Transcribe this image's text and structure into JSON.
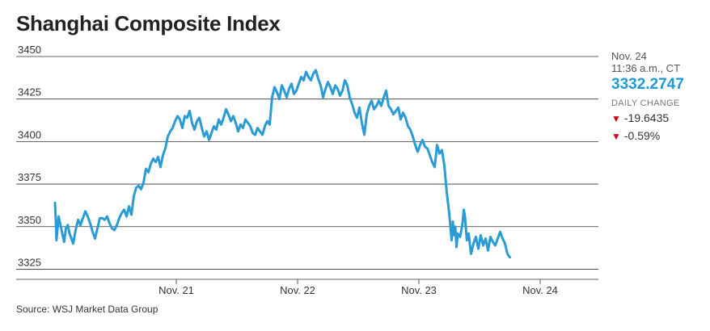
{
  "header": {
    "title": "Shanghai Composite Index"
  },
  "quote": {
    "date": "Nov. 24",
    "time": "11:36 a.m., CT",
    "price": "3332.2747",
    "daily_change_label": "DAILY CHANGE",
    "change_points": "-19.6435",
    "change_percent": "-0.59%",
    "down_color": "#d0021b",
    "price_color": "#1f9ad6"
  },
  "footer": {
    "source": "Source: WSJ Market Data Group"
  },
  "chart_data": {
    "type": "line",
    "title": "Shanghai Composite Index",
    "xlabel": "",
    "ylabel": "",
    "ylim": [
      3320,
      3450
    ],
    "yticks": [
      3325,
      3350,
      3375,
      3400,
      3425,
      3450
    ],
    "xlim": [
      0,
      4.5
    ],
    "xticks": [
      {
        "x": 1,
        "label": "Nov. 21"
      },
      {
        "x": 2,
        "label": "Nov. 22"
      },
      {
        "x": 3,
        "label": "Nov. 23"
      },
      {
        "x": 4,
        "label": "Nov. 24"
      }
    ],
    "grid": true,
    "line_color": "#2a9bd5",
    "series": [
      {
        "values": [
          [
            0.0,
            3364
          ],
          [
            0.006,
            3355
          ],
          [
            0.012,
            3342
          ],
          [
            0.02,
            3348
          ],
          [
            0.03,
            3356
          ],
          [
            0.045,
            3351
          ],
          [
            0.06,
            3346
          ],
          [
            0.075,
            3341
          ],
          [
            0.09,
            3349
          ],
          [
            0.105,
            3351
          ],
          [
            0.12,
            3346
          ],
          [
            0.135,
            3343
          ],
          [
            0.15,
            3340
          ],
          [
            0.17,
            3348
          ],
          [
            0.19,
            3354
          ],
          [
            0.21,
            3351
          ],
          [
            0.23,
            3355
          ],
          [
            0.25,
            3359
          ],
          [
            0.27,
            3356
          ],
          [
            0.29,
            3352
          ],
          [
            0.31,
            3347
          ],
          [
            0.33,
            3343
          ],
          [
            0.35,
            3349
          ],
          [
            0.37,
            3355
          ],
          [
            0.39,
            3355
          ],
          [
            0.41,
            3354
          ],
          [
            0.43,
            3356
          ],
          [
            0.45,
            3352
          ],
          [
            0.47,
            3349
          ],
          [
            0.49,
            3348
          ],
          [
            0.51,
            3351
          ],
          [
            0.53,
            3355
          ],
          [
            0.55,
            3358
          ],
          [
            0.57,
            3360
          ],
          [
            0.59,
            3356
          ],
          [
            0.61,
            3362
          ],
          [
            0.63,
            3357
          ],
          [
            0.65,
            3368
          ],
          [
            0.67,
            3373
          ],
          [
            0.69,
            3374
          ],
          [
            0.71,
            3372
          ],
          [
            0.73,
            3376
          ],
          [
            0.75,
            3384
          ],
          [
            0.77,
            3382
          ],
          [
            0.79,
            3387
          ],
          [
            0.81,
            3390
          ],
          [
            0.83,
            3388
          ],
          [
            0.85,
            3391
          ],
          [
            0.87,
            3385
          ],
          [
            0.89,
            3392
          ],
          [
            0.91,
            3396
          ],
          [
            0.93,
            3403
          ],
          [
            0.95,
            3406
          ],
          [
            0.97,
            3408
          ],
          [
            0.99,
            3412
          ],
          [
            1.01,
            3415
          ],
          [
            1.03,
            3413
          ],
          [
            1.05,
            3408
          ],
          [
            1.07,
            3415
          ],
          [
            1.09,
            3414
          ],
          [
            1.11,
            3418
          ],
          [
            1.13,
            3411
          ],
          [
            1.15,
            3407
          ],
          [
            1.17,
            3412
          ],
          [
            1.19,
            3414
          ],
          [
            1.21,
            3408
          ],
          [
            1.23,
            3403
          ],
          [
            1.25,
            3406
          ],
          [
            1.27,
            3401
          ],
          [
            1.29,
            3405
          ],
          [
            1.31,
            3409
          ],
          [
            1.33,
            3407
          ],
          [
            1.35,
            3413
          ],
          [
            1.37,
            3410
          ],
          [
            1.39,
            3414
          ],
          [
            1.41,
            3419
          ],
          [
            1.43,
            3416
          ],
          [
            1.45,
            3412
          ],
          [
            1.47,
            3415
          ],
          [
            1.49,
            3411
          ],
          [
            1.51,
            3406
          ],
          [
            1.53,
            3410
          ],
          [
            1.55,
            3408
          ],
          [
            1.57,
            3413
          ],
          [
            1.59,
            3411
          ],
          [
            1.61,
            3409
          ],
          [
            1.63,
            3405
          ],
          [
            1.65,
            3404
          ],
          [
            1.67,
            3408
          ],
          [
            1.69,
            3406
          ],
          [
            1.71,
            3404
          ],
          [
            1.73,
            3409
          ],
          [
            1.75,
            3412
          ],
          [
            1.77,
            3410
          ],
          [
            1.79,
            3426
          ],
          [
            1.81,
            3432
          ],
          [
            1.83,
            3429
          ],
          [
            1.85,
            3425
          ],
          [
            1.87,
            3433
          ],
          [
            1.89,
            3430
          ],
          [
            1.91,
            3426
          ],
          [
            1.93,
            3431
          ],
          [
            1.95,
            3434
          ],
          [
            1.97,
            3428
          ],
          [
            1.99,
            3430
          ],
          [
            2.01,
            3434
          ],
          [
            2.03,
            3438
          ],
          [
            2.05,
            3436
          ],
          [
            2.07,
            3441
          ],
          [
            2.09,
            3438
          ],
          [
            2.11,
            3436
          ],
          [
            2.13,
            3440
          ],
          [
            2.15,
            3442
          ],
          [
            2.17,
            3437
          ],
          [
            2.19,
            3433
          ],
          [
            2.21,
            3426
          ],
          [
            2.23,
            3431
          ],
          [
            2.25,
            3435
          ],
          [
            2.27,
            3432
          ],
          [
            2.29,
            3428
          ],
          [
            2.31,
            3433
          ],
          [
            2.33,
            3431
          ],
          [
            2.35,
            3427
          ],
          [
            2.37,
            3430
          ],
          [
            2.39,
            3436
          ],
          [
            2.41,
            3433
          ],
          [
            2.43,
            3426
          ],
          [
            2.45,
            3422
          ],
          [
            2.47,
            3417
          ],
          [
            2.49,
            3414
          ],
          [
            2.51,
            3420
          ],
          [
            2.53,
            3411
          ],
          [
            2.55,
            3404
          ],
          [
            2.57,
            3416
          ],
          [
            2.59,
            3421
          ],
          [
            2.61,
            3424
          ],
          [
            2.63,
            3419
          ],
          [
            2.65,
            3421
          ],
          [
            2.67,
            3424
          ],
          [
            2.69,
            3421
          ],
          [
            2.71,
            3426
          ],
          [
            2.73,
            3430
          ],
          [
            2.75,
            3421
          ],
          [
            2.77,
            3419
          ],
          [
            2.79,
            3416
          ],
          [
            2.81,
            3418
          ],
          [
            2.83,
            3420
          ],
          [
            2.85,
            3413
          ],
          [
            2.87,
            3417
          ],
          [
            2.89,
            3414
          ],
          [
            2.91,
            3409
          ],
          [
            2.93,
            3407
          ],
          [
            2.95,
            3403
          ],
          [
            2.97,
            3398
          ],
          [
            2.99,
            3394
          ],
          [
            3.01,
            3398
          ],
          [
            3.03,
            3401
          ],
          [
            3.05,
            3397
          ],
          [
            3.07,
            3396
          ],
          [
            3.09,
            3392
          ],
          [
            3.11,
            3388
          ],
          [
            3.13,
            3385
          ],
          [
            3.15,
            3398
          ],
          [
            3.17,
            3393
          ],
          [
            3.19,
            3395
          ],
          [
            3.21,
            3386
          ],
          [
            3.23,
            3370
          ],
          [
            3.25,
            3358
          ],
          [
            3.27,
            3342
          ],
          [
            3.28,
            3353
          ],
          [
            3.29,
            3345
          ],
          [
            3.3,
            3350
          ],
          [
            3.31,
            3338
          ],
          [
            3.32,
            3346
          ],
          [
            3.34,
            3344
          ],
          [
            3.36,
            3352
          ],
          [
            3.37,
            3360
          ],
          [
            3.38,
            3356
          ],
          [
            3.395,
            3342
          ],
          [
            3.41,
            3346
          ],
          [
            3.43,
            3334
          ],
          [
            3.45,
            3340
          ],
          [
            3.47,
            3344
          ],
          [
            3.49,
            3337
          ],
          [
            3.51,
            3345
          ],
          [
            3.53,
            3339
          ],
          [
            3.55,
            3343
          ],
          [
            3.57,
            3336
          ],
          [
            3.59,
            3344
          ],
          [
            3.61,
            3341
          ],
          [
            3.63,
            3339
          ],
          [
            3.65,
            3343
          ],
          [
            3.67,
            3347
          ],
          [
            3.69,
            3343
          ],
          [
            3.71,
            3340
          ],
          [
            3.73,
            3334
          ],
          [
            3.75,
            3332
          ]
        ]
      }
    ]
  }
}
